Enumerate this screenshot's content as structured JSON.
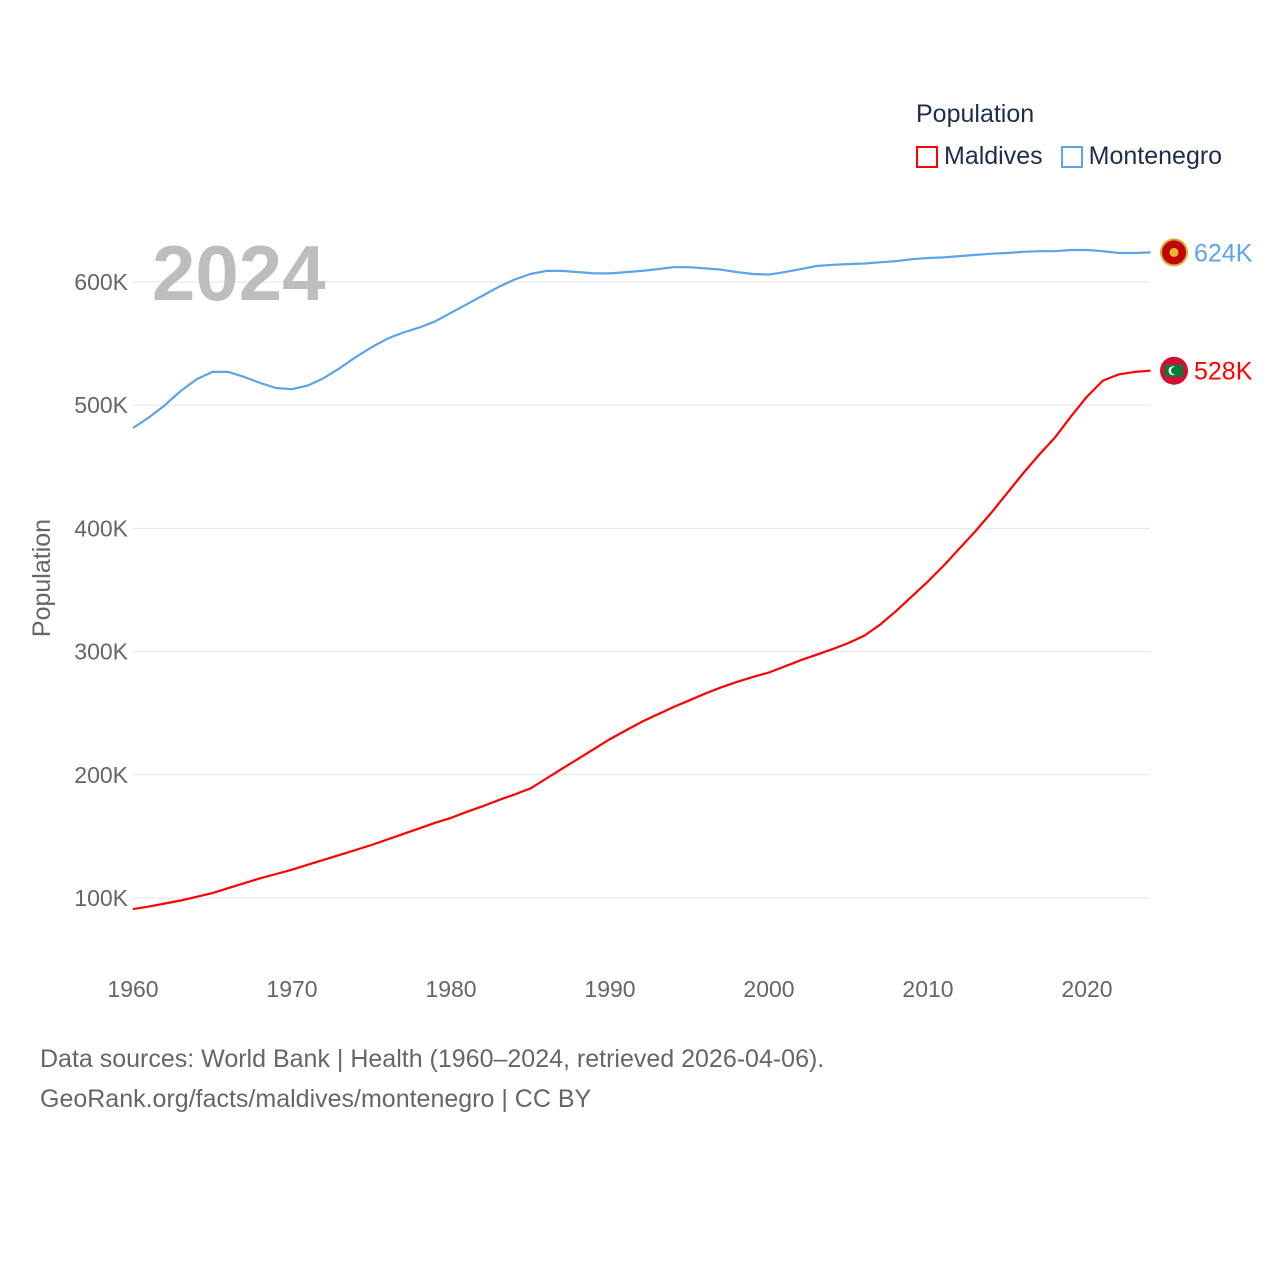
{
  "chart_data": {
    "type": "line",
    "title": "Population",
    "year_label": "2024",
    "xlabel": "",
    "ylabel": "Population",
    "xlim": [
      1960,
      2024
    ],
    "ylim": [
      50000,
      650000
    ],
    "x_ticks": [
      1960,
      1970,
      1980,
      1990,
      2000,
      2010,
      2020
    ],
    "x_tick_labels": [
      "1960",
      "1970",
      "1980",
      "1990",
      "2000",
      "2010",
      "2020"
    ],
    "y_ticks": [
      100000,
      200000,
      300000,
      400000,
      500000,
      600000
    ],
    "y_tick_labels": [
      "100K",
      "200K",
      "300K",
      "400K",
      "500K",
      "600K"
    ],
    "grid": true,
    "legend_placement": "top-right",
    "x": [
      1960,
      1961,
      1962,
      1963,
      1964,
      1965,
      1966,
      1967,
      1968,
      1969,
      1970,
      1971,
      1972,
      1973,
      1974,
      1975,
      1976,
      1977,
      1978,
      1979,
      1980,
      1981,
      1982,
      1983,
      1984,
      1985,
      1986,
      1987,
      1988,
      1989,
      1990,
      1991,
      1992,
      1993,
      1994,
      1995,
      1996,
      1997,
      1998,
      1999,
      2000,
      2001,
      2002,
      2003,
      2004,
      2005,
      2006,
      2007,
      2008,
      2009,
      2010,
      2011,
      2012,
      2013,
      2014,
      2015,
      2016,
      2017,
      2018,
      2019,
      2020,
      2021,
      2022,
      2023,
      2024
    ],
    "series": [
      {
        "name": "Maldives",
        "color": "#ff0000",
        "end_label": "528K",
        "flag": "maldives-flag",
        "values": [
          91000,
          93000,
          95500,
          98000,
          101000,
          104000,
          108000,
          112000,
          116000,
          119500,
          123000,
          127000,
          131000,
          135000,
          139000,
          143000,
          147500,
          152000,
          156500,
          161000,
          165000,
          170000,
          174500,
          179500,
          184000,
          189000,
          197000,
          205000,
          213000,
          221000,
          229000,
          236000,
          243000,
          249000,
          255000,
          260500,
          266000,
          271000,
          275500,
          279500,
          283000,
          288000,
          293000,
          297500,
          302000,
          307000,
          313000,
          322000,
          333000,
          345000,
          357000,
          370000,
          384000,
          398000,
          413000,
          429000,
          445000,
          460000,
          474000,
          491000,
          507000,
          520000,
          525000,
          527000,
          528000
        ]
      },
      {
        "name": "Montenegro",
        "color": "#5ba4ea",
        "end_label": "624K",
        "flag": "montenegro-flag",
        "values": [
          481500,
          490000,
          500000,
          511500,
          521000,
          527000,
          527000,
          523000,
          518000,
          514000,
          513000,
          516000,
          522000,
          530000,
          539000,
          547000,
          554000,
          559000,
          563000,
          568000,
          575000,
          582000,
          589000,
          596000,
          602000,
          606500,
          609000,
          609000,
          608000,
          607000,
          607000,
          608000,
          609000,
          610500,
          612000,
          612000,
          611000,
          610000,
          608000,
          606500,
          606000,
          608000,
          610500,
          613000,
          614000,
          614500,
          615000,
          616000,
          617000,
          618500,
          619500,
          620000,
          621000,
          622000,
          623000,
          623500,
          624500,
          625000,
          625000,
          626000,
          626000,
          625000,
          623500,
          623500,
          624000
        ]
      }
    ]
  },
  "legend": {
    "title": "Population",
    "items": [
      "Maldives",
      "Montenegro"
    ]
  },
  "footer": {
    "line1": "Data sources: World Bank | Health (1960–2024, retrieved 2026-04-06).",
    "line2": "GeoRank.org/facts/maldives/montenegro | CC BY"
  }
}
